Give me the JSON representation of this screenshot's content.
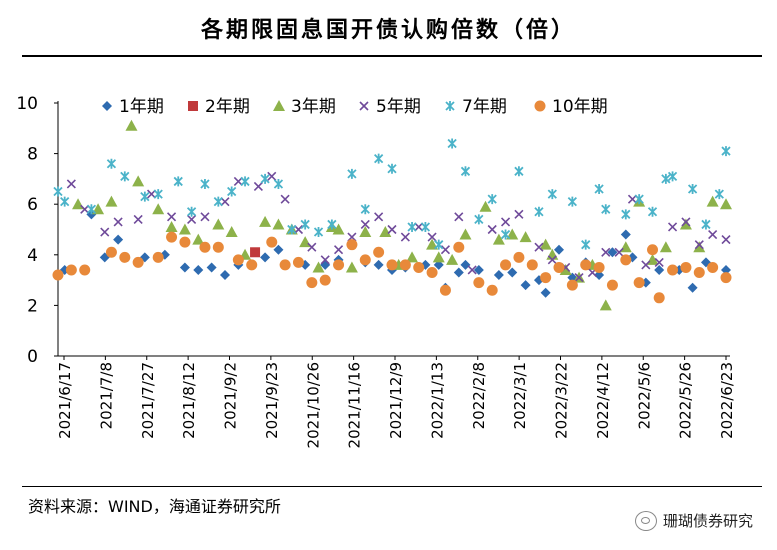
{
  "title": "各期限固息国开债认购倍数（倍）",
  "source": "资料来源：WIND，海通证券研究所",
  "watermark": "珊瑚债券研究",
  "chart_data": {
    "type": "scatter",
    "ylim": [
      0,
      10
    ],
    "yticks": [
      0,
      2,
      4,
      6,
      8,
      10
    ],
    "xticks": [
      "2021/6/17",
      "2021/7/8",
      "2021/7/27",
      "2021/8/12",
      "2021/9/2",
      "2021/9/23",
      "2021/10/26",
      "2021/11/16",
      "2021/12/9",
      "2022/1/13",
      "2022/2/8",
      "2022/3/1",
      "2022/3/22",
      "2022/4/12",
      "2022/5/6",
      "2022/5/26",
      "2022/6/23"
    ],
    "x_range": [
      0,
      100
    ],
    "series": [
      {
        "name": "1年期",
        "color": "#2e6bb0",
        "marker": "diamond",
        "points": [
          [
            1,
            3.4
          ],
          [
            5,
            5.6
          ],
          [
            7,
            3.9
          ],
          [
            9,
            4.6
          ],
          [
            13,
            3.9
          ],
          [
            16,
            4.0
          ],
          [
            19,
            3.5
          ],
          [
            21,
            3.4
          ],
          [
            23,
            3.5
          ],
          [
            25,
            3.2
          ],
          [
            27,
            3.6
          ],
          [
            31,
            3.9
          ],
          [
            33,
            4.2
          ],
          [
            37,
            3.6
          ],
          [
            40,
            3.6
          ],
          [
            42,
            3.8
          ],
          [
            46,
            3.7
          ],
          [
            48,
            3.6
          ],
          [
            50,
            3.4
          ],
          [
            52,
            3.5
          ],
          [
            55,
            3.6
          ],
          [
            57,
            3.6
          ],
          [
            58,
            2.7
          ],
          [
            60,
            3.3
          ],
          [
            61,
            3.6
          ],
          [
            63,
            3.4
          ],
          [
            66,
            3.2
          ],
          [
            68,
            3.3
          ],
          [
            70,
            2.8
          ],
          [
            72,
            3.0
          ],
          [
            73,
            2.5
          ],
          [
            75,
            4.2
          ],
          [
            77,
            3.1
          ],
          [
            79,
            3.7
          ],
          [
            81,
            3.2
          ],
          [
            83,
            4.1
          ],
          [
            85,
            4.8
          ],
          [
            86,
            3.9
          ],
          [
            88,
            2.9
          ],
          [
            90,
            3.4
          ],
          [
            93,
            3.4
          ],
          [
            95,
            2.7
          ],
          [
            97,
            3.7
          ],
          [
            100,
            3.4
          ]
        ]
      },
      {
        "name": "2年期",
        "color": "#c0393b",
        "marker": "square",
        "points": [
          [
            29.5,
            4.1
          ]
        ]
      },
      {
        "name": "3年期",
        "color": "#8db24a",
        "marker": "triangle",
        "points": [
          [
            3,
            6.0
          ],
          [
            6,
            5.8
          ],
          [
            8,
            6.1
          ],
          [
            11,
            9.1
          ],
          [
            12,
            6.9
          ],
          [
            15,
            5.8
          ],
          [
            17,
            5.1
          ],
          [
            19,
            5.0
          ],
          [
            21,
            4.6
          ],
          [
            24,
            5.2
          ],
          [
            26,
            4.9
          ],
          [
            28,
            4.0
          ],
          [
            31,
            5.3
          ],
          [
            33,
            5.2
          ],
          [
            35,
            5.0
          ],
          [
            37,
            4.5
          ],
          [
            39,
            3.5
          ],
          [
            41,
            5.1
          ],
          [
            42,
            5.0
          ],
          [
            44,
            3.5
          ],
          [
            46,
            4.9
          ],
          [
            49,
            4.9
          ],
          [
            51,
            3.6
          ],
          [
            53,
            3.9
          ],
          [
            56,
            4.4
          ],
          [
            57,
            3.9
          ],
          [
            59,
            3.8
          ],
          [
            61,
            4.8
          ],
          [
            64,
            5.9
          ],
          [
            66,
            4.6
          ],
          [
            68,
            4.8
          ],
          [
            70,
            4.7
          ],
          [
            73,
            4.4
          ],
          [
            74,
            4.0
          ],
          [
            76,
            3.4
          ],
          [
            78,
            3.1
          ],
          [
            80,
            3.6
          ],
          [
            82,
            2.0
          ],
          [
            85,
            4.3
          ],
          [
            87,
            6.1
          ],
          [
            89,
            3.8
          ],
          [
            91,
            4.3
          ],
          [
            94,
            5.2
          ],
          [
            96,
            4.3
          ],
          [
            98,
            6.1
          ],
          [
            100,
            6.0
          ]
        ]
      },
      {
        "name": "5年期",
        "color": "#6f4a9a",
        "marker": "x",
        "points": [
          [
            2,
            6.8
          ],
          [
            4,
            5.8
          ],
          [
            7,
            4.9
          ],
          [
            9,
            5.3
          ],
          [
            12,
            5.4
          ],
          [
            14,
            6.4
          ],
          [
            17,
            5.5
          ],
          [
            20,
            5.4
          ],
          [
            22,
            5.5
          ],
          [
            25,
            6.1
          ],
          [
            27,
            6.9
          ],
          [
            30,
            6.7
          ],
          [
            32,
            7.1
          ],
          [
            34,
            6.2
          ],
          [
            36,
            5.0
          ],
          [
            38,
            4.3
          ],
          [
            40,
            3.8
          ],
          [
            42,
            4.2
          ],
          [
            44,
            4.7
          ],
          [
            46,
            5.2
          ],
          [
            48,
            5.5
          ],
          [
            50,
            5.0
          ],
          [
            52,
            4.7
          ],
          [
            54,
            5.1
          ],
          [
            56,
            4.7
          ],
          [
            58,
            4.2
          ],
          [
            60,
            5.5
          ],
          [
            62,
            3.4
          ],
          [
            65,
            5.0
          ],
          [
            67,
            5.3
          ],
          [
            69,
            5.6
          ],
          [
            72,
            4.3
          ],
          [
            74,
            3.8
          ],
          [
            76,
            3.5
          ],
          [
            78,
            3.1
          ],
          [
            80,
            3.3
          ],
          [
            82,
            4.1
          ],
          [
            84,
            4.1
          ],
          [
            86,
            6.2
          ],
          [
            88,
            3.6
          ],
          [
            90,
            3.7
          ],
          [
            92,
            5.1
          ],
          [
            94,
            5.3
          ],
          [
            96,
            4.4
          ],
          [
            98,
            4.8
          ],
          [
            100,
            4.6
          ]
        ]
      },
      {
        "name": "7年期",
        "color": "#4bb3c9",
        "marker": "star",
        "points": [
          [
            0,
            6.5
          ],
          [
            1,
            6.1
          ],
          [
            5,
            5.8
          ],
          [
            8,
            7.6
          ],
          [
            10,
            7.1
          ],
          [
            13,
            6.3
          ],
          [
            15,
            6.4
          ],
          [
            18,
            6.9
          ],
          [
            20,
            5.7
          ],
          [
            22,
            6.8
          ],
          [
            24,
            6.1
          ],
          [
            26,
            6.5
          ],
          [
            28,
            6.9
          ],
          [
            31,
            7.0
          ],
          [
            33,
            6.8
          ],
          [
            35,
            5.0
          ],
          [
            37,
            5.2
          ],
          [
            39,
            4.9
          ],
          [
            41,
            5.2
          ],
          [
            44,
            7.2
          ],
          [
            46,
            5.8
          ],
          [
            48,
            7.8
          ],
          [
            50,
            7.4
          ],
          [
            53,
            5.1
          ],
          [
            55,
            5.1
          ],
          [
            57,
            4.4
          ],
          [
            59,
            8.4
          ],
          [
            61,
            7.3
          ],
          [
            63,
            5.4
          ],
          [
            65,
            6.2
          ],
          [
            67,
            4.8
          ],
          [
            69,
            7.3
          ],
          [
            72,
            5.7
          ],
          [
            74,
            6.4
          ],
          [
            77,
            6.1
          ],
          [
            79,
            4.4
          ],
          [
            81,
            6.6
          ],
          [
            82,
            5.8
          ],
          [
            85,
            5.6
          ],
          [
            87,
            6.2
          ],
          [
            89,
            5.7
          ],
          [
            91,
            7.0
          ],
          [
            92,
            7.1
          ],
          [
            95,
            6.6
          ],
          [
            97,
            5.2
          ],
          [
            99,
            6.4
          ],
          [
            100,
            8.1
          ]
        ]
      },
      {
        "name": "10年期",
        "color": "#e8893a",
        "marker": "circle",
        "points": [
          [
            0,
            3.2
          ],
          [
            2,
            3.4
          ],
          [
            4,
            3.4
          ],
          [
            8,
            4.1
          ],
          [
            10,
            3.9
          ],
          [
            12,
            3.7
          ],
          [
            15,
            3.9
          ],
          [
            17,
            4.7
          ],
          [
            19,
            4.5
          ],
          [
            22,
            4.3
          ],
          [
            24,
            4.3
          ],
          [
            27,
            3.8
          ],
          [
            29,
            3.6
          ],
          [
            32,
            4.5
          ],
          [
            34,
            3.6
          ],
          [
            36,
            3.7
          ],
          [
            38,
            2.9
          ],
          [
            40,
            3.0
          ],
          [
            42,
            3.6
          ],
          [
            44,
            4.4
          ],
          [
            46,
            3.8
          ],
          [
            48,
            4.1
          ],
          [
            50,
            3.6
          ],
          [
            52,
            3.6
          ],
          [
            54,
            3.5
          ],
          [
            56,
            3.3
          ],
          [
            58,
            2.6
          ],
          [
            60,
            4.3
          ],
          [
            63,
            2.9
          ],
          [
            65,
            2.6
          ],
          [
            67,
            3.6
          ],
          [
            69,
            3.9
          ],
          [
            71,
            3.6
          ],
          [
            73,
            3.1
          ],
          [
            75,
            3.5
          ],
          [
            77,
            2.8
          ],
          [
            79,
            3.6
          ],
          [
            81,
            3.5
          ],
          [
            83,
            2.8
          ],
          [
            85,
            3.8
          ],
          [
            87,
            2.9
          ],
          [
            89,
            4.2
          ],
          [
            90,
            2.3
          ],
          [
            92,
            3.4
          ],
          [
            94,
            3.5
          ],
          [
            96,
            3.3
          ],
          [
            98,
            3.5
          ],
          [
            100,
            3.1
          ]
        ]
      }
    ]
  }
}
